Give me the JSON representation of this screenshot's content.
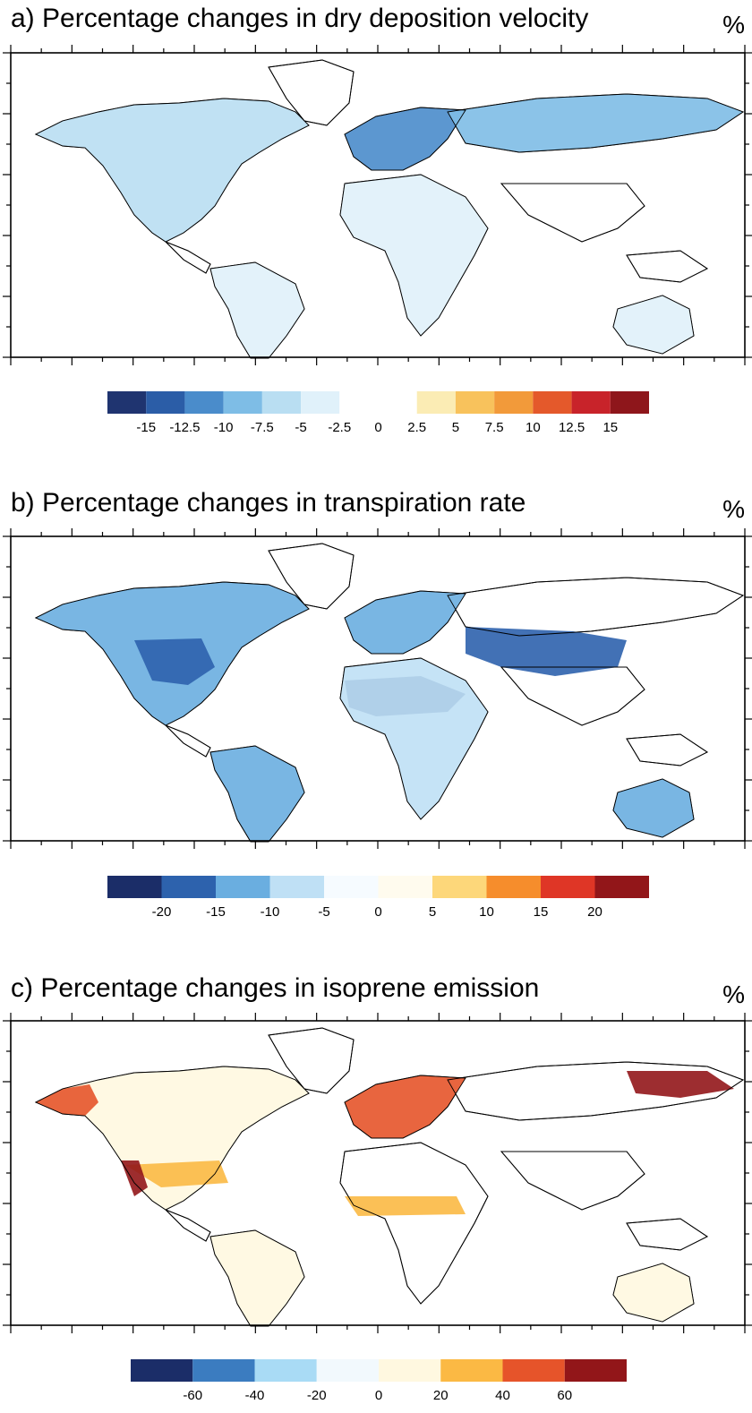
{
  "panels": [
    {
      "id": "a",
      "title": "a) Percentage changes in dry deposition velocity",
      "unit": "%",
      "colorbar": {
        "colors": [
          "#1f3470",
          "#2b5da7",
          "#4a8ccb",
          "#7ebde6",
          "#b9def2",
          "#e0f1fa",
          "#ffffff",
          "#ffffff",
          "#fbecb4",
          "#f8c25c",
          "#f29a3a",
          "#e4592b",
          "#c8232a",
          "#8e161b"
        ],
        "labels": [
          "-15",
          "-12.5",
          "-10",
          "-7.5",
          "-5",
          "-2.5",
          "0",
          "2.5",
          "5",
          "7.5",
          "10",
          "12.5",
          "15"
        ]
      },
      "regions": [
        {
          "name": "north-america",
          "color": "#b9def2"
        },
        {
          "name": "europe",
          "color": "#4a8ccb"
        },
        {
          "name": "siberia",
          "color": "#7ebde6"
        },
        {
          "name": "south-america",
          "color": "#e0f1fa"
        },
        {
          "name": "africa",
          "color": "#e0f1fa"
        },
        {
          "name": "australia",
          "color": "#e0f1fa"
        }
      ]
    },
    {
      "id": "b",
      "title": "b) Percentage changes in transpiration rate",
      "unit": "%",
      "colorbar": {
        "colors": [
          "#1b2d68",
          "#2d62ad",
          "#6aaee0",
          "#bfe0f5",
          "#f6fbff",
          "#fffbee",
          "#fdd77a",
          "#f68d2c",
          "#df3626",
          "#921619"
        ],
        "labels": [
          "-20",
          "-15",
          "-10",
          "-5",
          "0",
          "5",
          "10",
          "15",
          "20"
        ]
      },
      "regions": [
        {
          "name": "north-america",
          "color": "#6aaee0"
        },
        {
          "name": "central-usa",
          "color": "#2d62ad"
        },
        {
          "name": "europe",
          "color": "#6aaee0"
        },
        {
          "name": "central-asia",
          "color": "#2d62ad"
        },
        {
          "name": "sahara",
          "color": "#1b2d68"
        },
        {
          "name": "south-america",
          "color": "#6aaee0"
        },
        {
          "name": "africa",
          "color": "#bfe0f5"
        },
        {
          "name": "australia",
          "color": "#6aaee0"
        }
      ]
    },
    {
      "id": "c",
      "title": "c) Percentage changes in isoprene emission",
      "unit": "%",
      "colorbar": {
        "colors": [
          "#1b2d68",
          "#3b7cc0",
          "#a9dbf5",
          "#f2f9fd",
          "#fff8e0",
          "#fbb944",
          "#e6542a",
          "#921619"
        ],
        "labels": [
          "-60",
          "-40",
          "-20",
          "0",
          "20",
          "40",
          "60"
        ]
      },
      "regions": [
        {
          "name": "north-america",
          "color": "#fff8e0"
        },
        {
          "name": "alaska",
          "color": "#e6542a"
        },
        {
          "name": "usa-band",
          "color": "#fbb944"
        },
        {
          "name": "california",
          "color": "#921619"
        },
        {
          "name": "europe",
          "color": "#e6542a"
        },
        {
          "name": "siberia-east",
          "color": "#921619"
        },
        {
          "name": "sahel",
          "color": "#fbb944"
        },
        {
          "name": "south-america",
          "color": "#fff8e0"
        },
        {
          "name": "australia",
          "color": "#fff8e0"
        }
      ]
    }
  ]
}
